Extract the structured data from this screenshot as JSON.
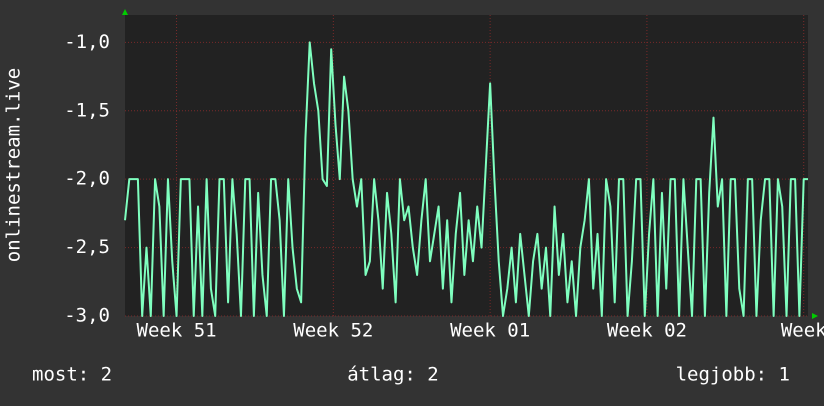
{
  "chart_data": {
    "type": "line",
    "y_label": "onlinestream.live",
    "ylim": [
      -3.0,
      -0.8
    ],
    "yticks": [
      {
        "value": -3.0,
        "label": "-3,0"
      },
      {
        "value": -2.5,
        "label": "-2,5"
      },
      {
        "value": -2.0,
        "label": "-2,0"
      },
      {
        "value": -1.5,
        "label": "-1,5"
      },
      {
        "value": -1.0,
        "label": "-1,0"
      }
    ],
    "xlim": [
      0,
      159
    ],
    "xticks": [
      {
        "value": 12,
        "label": "Week 51"
      },
      {
        "value": 48.5,
        "label": "Week 52"
      },
      {
        "value": 85,
        "label": "Week 01"
      },
      {
        "value": 121.5,
        "label": "Week 02"
      },
      {
        "value": 158,
        "label": "Week"
      }
    ],
    "grid": true,
    "series": [
      {
        "color": "#7fffbf",
        "values": [
          -2.3,
          -2,
          -2,
          -2,
          -3,
          -2.5,
          -3,
          -2,
          -2.2,
          -3,
          -2,
          -2.6,
          -3,
          -2,
          -2,
          -2,
          -3,
          -2.2,
          -3,
          -2,
          -2.8,
          -3,
          -2,
          -2,
          -2.9,
          -2,
          -2.4,
          -3,
          -2,
          -2,
          -3,
          -2.1,
          -2.7,
          -3,
          -2,
          -2,
          -2.3,
          -3,
          -2,
          -2.5,
          -2.8,
          -2.9,
          -1.7,
          -1.0,
          -1.3,
          -1.5,
          -2.0,
          -2.05,
          -1.05,
          -1.6,
          -2,
          -1.25,
          -1.5,
          -2,
          -2.2,
          -2,
          -2.7,
          -2.6,
          -2,
          -2.3,
          -2.8,
          -2.1,
          -2.4,
          -2.9,
          -2,
          -2.3,
          -2.2,
          -2.5,
          -2.7,
          -2.3,
          -2,
          -2.6,
          -2.4,
          -2.2,
          -2.8,
          -2.3,
          -2.9,
          -2.4,
          -2.1,
          -2.7,
          -2.3,
          -2.6,
          -2.2,
          -2.5,
          -1.9,
          -1.3,
          -2.0,
          -2.6,
          -3,
          -2.8,
          -2.5,
          -2.9,
          -2.4,
          -2.7,
          -3,
          -2.6,
          -2.4,
          -2.8,
          -2.5,
          -3,
          -2.2,
          -2.7,
          -2.4,
          -2.9,
          -2.6,
          -3,
          -2.5,
          -2.3,
          -2,
          -2.8,
          -2.4,
          -3,
          -2,
          -2.2,
          -2.9,
          -2,
          -2,
          -3,
          -2.6,
          -2,
          -2,
          -3,
          -2.4,
          -2,
          -3,
          -2.1,
          -2.8,
          -2,
          -2,
          -3,
          -2,
          -2.5,
          -3,
          -2,
          -2,
          -3,
          -2.1,
          -1.55,
          -2.2,
          -2,
          -3,
          -2,
          -2,
          -2.8,
          -3,
          -2,
          -2,
          -3,
          -2.3,
          -2,
          -2,
          -3,
          -2,
          -2.2,
          -3,
          -2,
          -2,
          -3,
          -2,
          -2
        ]
      }
    ],
    "footer": [
      "most: 2",
      "átlag: 2",
      "legjobb: 1"
    ]
  }
}
